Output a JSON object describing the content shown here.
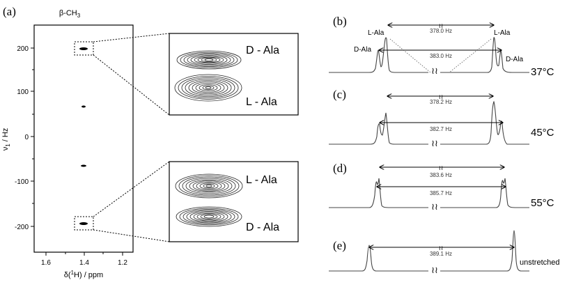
{
  "figure": {
    "panel_a": {
      "label": "(a)",
      "top_label_prefix": "β-CH",
      "top_label_sub": "3",
      "y_axis_title": "ν",
      "y_axis_title_sub": "1",
      "y_axis_title_suffix": " / Hz",
      "x_axis_title_prefix": "δ(",
      "x_axis_title_sup": "1",
      "x_axis_title_suffix": "H) / ppm",
      "y_ticks": [
        "200",
        "100",
        "0",
        "-100",
        "-200"
      ],
      "x_ticks": [
        "1.6",
        "1.4",
        "1.2"
      ]
    },
    "zoom_top": {
      "label_upper": "D - Ala",
      "label_lower": "L - Ala"
    },
    "zoom_bottom": {
      "label_upper": "L - Ala",
      "label_lower": "D - Ala"
    },
    "spectra": [
      {
        "label": "(b)",
        "temperature": "37°C",
        "outer_hz": "378.0 Hz",
        "inner_hz": "383.0 Hz",
        "left_tag_l": "L-Ala",
        "left_tag_d": "D-Ala",
        "right_tag_l": "L-Ala",
        "right_tag_d": "D-Ala"
      },
      {
        "label": "(c)",
        "temperature": "45°C",
        "outer_hz": "378.2 Hz",
        "inner_hz": "382.7 Hz"
      },
      {
        "label": "(d)",
        "temperature": "55°C",
        "outer_hz": "383.6 Hz",
        "inner_hz": "385.7 Hz"
      },
      {
        "label": "(e)",
        "temperature": "unstretched",
        "outer_hz": "389.1 Hz"
      }
    ]
  }
}
